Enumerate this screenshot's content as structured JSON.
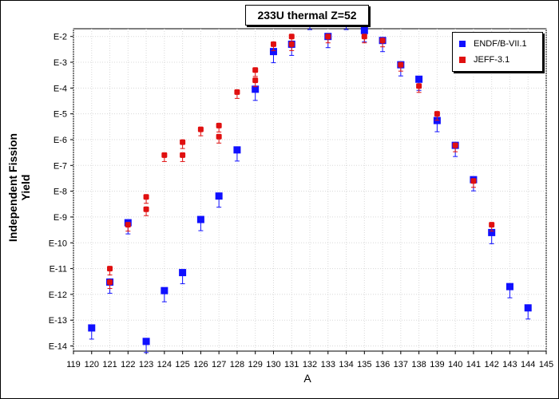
{
  "chart_data": {
    "type": "scatter",
    "title": "233U thermal Z=52",
    "xlabel": "A",
    "ylabel": "Independent Fission Yield",
    "xlim": [
      119,
      145
    ],
    "x_ticks": [
      "119",
      "120",
      "121",
      "122",
      "123",
      "124",
      "125",
      "126",
      "127",
      "128",
      "129",
      "130",
      "131",
      "132",
      "133",
      "134",
      "135",
      "136",
      "137",
      "138",
      "139",
      "140",
      "141",
      "142",
      "143",
      "144",
      "145"
    ],
    "y_scale": "log",
    "ylim_exp": [
      -14.2,
      -1.7
    ],
    "y_ticks": [
      "E-2",
      "E-3",
      "E-4",
      "E-5",
      "E-6",
      "E-7",
      "E-8",
      "E-9",
      "E-10",
      "E-11",
      "E-12",
      "E-13",
      "E-14"
    ],
    "grid": true,
    "legend_position": "top-right",
    "series": [
      {
        "name": "ENDF/B-VII.1",
        "color": "#1010ff",
        "points": [
          {
            "x": 120,
            "y": "5e-14"
          },
          {
            "x": 121,
            "y": "3e-12"
          },
          {
            "x": 122,
            "y": "6e-10"
          },
          {
            "x": 123,
            "y": "1.5e-14"
          },
          {
            "x": 124,
            "y": "1.4e-12"
          },
          {
            "x": 125,
            "y": "7e-12"
          },
          {
            "x": 126,
            "y": "8e-10"
          },
          {
            "x": 127,
            "y": "6.5e-9"
          },
          {
            "x": 128,
            "y": "4e-7"
          },
          {
            "x": 129,
            "y": "9e-5"
          },
          {
            "x": 130,
            "y": "2.6e-3"
          },
          {
            "x": 131,
            "y": "5e-3"
          },
          {
            "x": 132,
            "y": "5e-2"
          },
          {
            "x": 133,
            "y": "1e-2"
          },
          {
            "x": 134,
            "y": "5e-2"
          },
          {
            "x": 135,
            "y": "1.7e-2"
          },
          {
            "x": 136,
            "y": "7e-3"
          },
          {
            "x": 137,
            "y": "8e-4"
          },
          {
            "x": 138,
            "y": "2.2e-4"
          },
          {
            "x": 139,
            "y": "5.5e-6"
          },
          {
            "x": 140,
            "y": "6e-7"
          },
          {
            "x": 141,
            "y": "2.8e-8"
          },
          {
            "x": 142,
            "y": "2.5e-10"
          },
          {
            "x": 143,
            "y": "2e-12"
          },
          {
            "x": 144,
            "y": "3e-13"
          }
        ]
      },
      {
        "name": "JEFF-3.1",
        "color": "#e01010",
        "points": [
          {
            "x": 121,
            "y": "3e-12"
          },
          {
            "x": 121,
            "y": "1e-11"
          },
          {
            "x": 122,
            "y": "5e-10"
          },
          {
            "x": 123,
            "y": "2e-9"
          },
          {
            "x": 123,
            "y": "6e-9"
          },
          {
            "x": 124,
            "y": "2.5e-7"
          },
          {
            "x": 125,
            "y": "2.5e-7"
          },
          {
            "x": 125,
            "y": "8e-7"
          },
          {
            "x": 126,
            "y": "2.5e-6"
          },
          {
            "x": 127,
            "y": "1.3e-6"
          },
          {
            "x": 127,
            "y": "3.5e-6"
          },
          {
            "x": 128,
            "y": "7e-5"
          },
          {
            "x": 129,
            "y": "2e-4"
          },
          {
            "x": 129,
            "y": "5e-4"
          },
          {
            "x": 130,
            "y": "5e-3"
          },
          {
            "x": 131,
            "y": "5e-3"
          },
          {
            "x": 131,
            "y": "1e-2"
          },
          {
            "x": 132,
            "y": "5e-2"
          },
          {
            "x": 133,
            "y": "1e-2"
          },
          {
            "x": 134,
            "y": "5e-2"
          },
          {
            "x": 135,
            "y": "1e-2"
          },
          {
            "x": 136,
            "y": "7e-3"
          },
          {
            "x": 137,
            "y": "8e-4"
          },
          {
            "x": 138,
            "y": "1.2e-4"
          },
          {
            "x": 139,
            "y": "1e-5"
          },
          {
            "x": 140,
            "y": "6e-7"
          },
          {
            "x": 141,
            "y": "2.5e-8"
          },
          {
            "x": 142,
            "y": "5e-10"
          }
        ]
      }
    ]
  }
}
